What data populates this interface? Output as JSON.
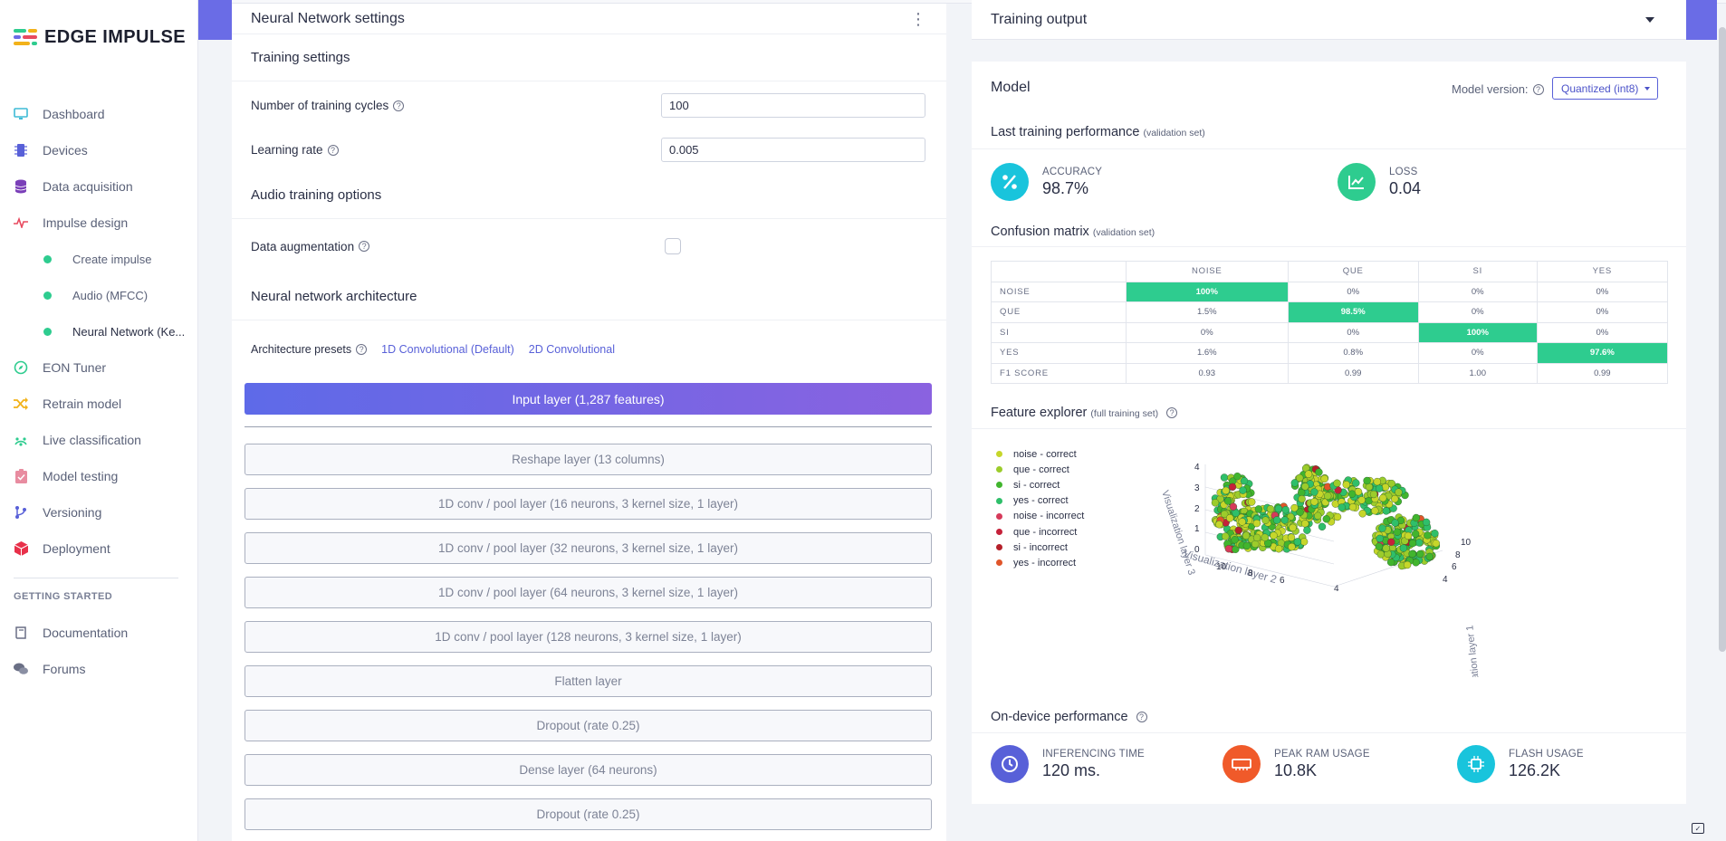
{
  "app": {
    "brand": "EDGE IMPULSE"
  },
  "colors": {
    "accent": "#5860d8",
    "green": "#2ecc8f",
    "purple": "#6a6ce6"
  },
  "sidebar": {
    "items": [
      {
        "label": "Dashboard",
        "icon": "monitor-icon"
      },
      {
        "label": "Devices",
        "icon": "chip-icon"
      },
      {
        "label": "Data acquisition",
        "icon": "database-icon"
      },
      {
        "label": "Impulse design",
        "icon": "pulse-icon"
      }
    ],
    "sub_items": [
      {
        "label": "Create impulse"
      },
      {
        "label": "Audio (MFCC)"
      },
      {
        "label": "Neural Network (Ke..."
      }
    ],
    "items2": [
      {
        "label": "EON Tuner",
        "icon": "compass-icon"
      },
      {
        "label": "Retrain model",
        "icon": "shuffle-icon"
      },
      {
        "label": "Live classification",
        "icon": "live-icon"
      },
      {
        "label": "Model testing",
        "icon": "clipboard-check-icon"
      },
      {
        "label": "Versioning",
        "icon": "git-branch-icon"
      },
      {
        "label": "Deployment",
        "icon": "package-icon"
      }
    ],
    "getting_started_heading": "GETTING STARTED",
    "items3": [
      {
        "label": "Documentation",
        "icon": "book-icon"
      },
      {
        "label": "Forums",
        "icon": "chat-icon"
      }
    ]
  },
  "nn_settings": {
    "title": "Neural Network settings",
    "training_settings_title": "Training settings",
    "training_cycles_label": "Number of training cycles",
    "training_cycles_value": "100",
    "learning_rate_label": "Learning rate",
    "learning_rate_value": "0.005",
    "audio_options_title": "Audio training options",
    "data_augmentation_label": "Data augmentation",
    "data_augmentation_checked": false,
    "architecture_title": "Neural network architecture",
    "presets_label": "Architecture presets",
    "presets": [
      "1D Convolutional (Default)",
      "2D Convolutional"
    ],
    "input_layer": "Input layer (1,287 features)",
    "layers": [
      "Reshape layer (13 columns)",
      "1D conv / pool layer (16 neurons, 3 kernel size, 1 layer)",
      "1D conv / pool layer (32 neurons, 3 kernel size, 1 layer)",
      "1D conv / pool layer (64 neurons, 3 kernel size, 1 layer)",
      "1D conv / pool layer (128 neurons, 3 kernel size, 1 layer)",
      "Flatten layer",
      "Dropout (rate 0.25)",
      "Dense layer (64 neurons)",
      "Dropout (rate 0.25)"
    ]
  },
  "training_output": {
    "title": "Training output"
  },
  "model": {
    "title": "Model",
    "version_label": "Model version:",
    "version_value": "Quantized (int8)",
    "last_perf_title": "Last training performance",
    "last_perf_sub": "(validation set)",
    "accuracy_label": "ACCURACY",
    "accuracy_value": "98.7%",
    "loss_label": "LOSS",
    "loss_value": "0.04",
    "confusion_title": "Confusion matrix",
    "confusion_sub": "(validation set)",
    "confusion": {
      "columns": [
        "NOISE",
        "QUE",
        "SI",
        "YES"
      ],
      "rows": [
        {
          "label": "NOISE",
          "cells": [
            "100%",
            "0%",
            "0%",
            "0%"
          ],
          "hi": 0
        },
        {
          "label": "QUE",
          "cells": [
            "1.5%",
            "98.5%",
            "0%",
            "0%"
          ],
          "hi": 1
        },
        {
          "label": "SI",
          "cells": [
            "0%",
            "0%",
            "100%",
            "0%"
          ],
          "hi": 2
        },
        {
          "label": "YES",
          "cells": [
            "1.6%",
            "0.8%",
            "0%",
            "97.6%"
          ],
          "hi": 3
        },
        {
          "label": "F1 SCORE",
          "cells": [
            "0.93",
            "0.99",
            "1.00",
            "0.99"
          ],
          "hi": -1
        }
      ]
    },
    "feature_title": "Feature explorer",
    "feature_sub": "(full training set)",
    "legend": [
      {
        "label": "noise - correct",
        "color": "#c6d62a"
      },
      {
        "label": "que - correct",
        "color": "#9ccc2b"
      },
      {
        "label": "si - correct",
        "color": "#41b52e"
      },
      {
        "label": "yes - correct",
        "color": "#2fbf6a"
      },
      {
        "label": "noise - incorrect",
        "color": "#d63a5a"
      },
      {
        "label": "que - incorrect",
        "color": "#c5213a"
      },
      {
        "label": "si - incorrect",
        "color": "#b5202a"
      },
      {
        "label": "yes - incorrect",
        "color": "#e0552a"
      }
    ],
    "axes": {
      "layer1": "Visualization layer 1",
      "layer2": "Visualization layer 2",
      "layer3": "Visualization layer 3",
      "ticks3": [
        "4",
        "3",
        "2",
        "1",
        "0"
      ],
      "ticks2": [
        "10",
        "8",
        "6",
        "4"
      ],
      "ticks1": [
        "10",
        "8",
        "6",
        "4"
      ]
    },
    "ondevice_title": "On-device performance",
    "inferencing_label": "INFERENCING TIME",
    "inferencing_value": "120 ms.",
    "ram_label": "PEAK RAM USAGE",
    "ram_value": "10.8K",
    "flash_label": "FLASH USAGE",
    "flash_value": "126.2K"
  }
}
